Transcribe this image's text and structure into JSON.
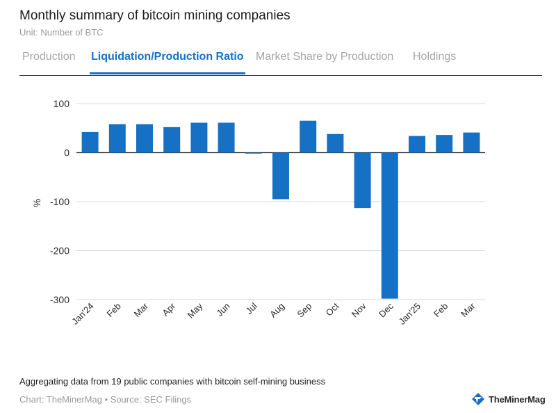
{
  "header": {
    "title": "Monthly summary of bitcoin mining companies",
    "subtitle": "Unit: Number of BTC"
  },
  "tabs": [
    {
      "label": "Production",
      "active": false
    },
    {
      "label": "Liquidation/Production Ratio",
      "active": true
    },
    {
      "label": "Market Share by Production",
      "active": false
    },
    {
      "label": "Holdings",
      "active": false
    }
  ],
  "chart_data": {
    "type": "bar",
    "categories": [
      "Jan'24",
      "Feb",
      "Mar",
      "Apr",
      "May",
      "Jun",
      "Jul",
      "Aug",
      "Sep",
      "Oct",
      "Nov",
      "Dec",
      "Jan'25",
      "Feb",
      "Mar"
    ],
    "values": [
      42,
      58,
      58,
      52,
      61,
      61,
      -2,
      -95,
      65,
      38,
      -113,
      -298,
      34,
      36,
      41
    ],
    "ylabel": "%",
    "ylim": [
      -300,
      100
    ],
    "yticks": [
      100,
      0,
      -100,
      -200,
      -300
    ],
    "grid": true,
    "bar_color": "#1670c4"
  },
  "footer": {
    "note": "Aggregating data from 19 public companies with bitcoin self-mining business",
    "credit": "Chart: TheMinerMag • Source: SEC Filings",
    "brand": "TheMinerMag"
  },
  "colors": {
    "accent": "#1670c4",
    "muted_text": "#9a9a9a",
    "grid": "#d9d9d9"
  }
}
